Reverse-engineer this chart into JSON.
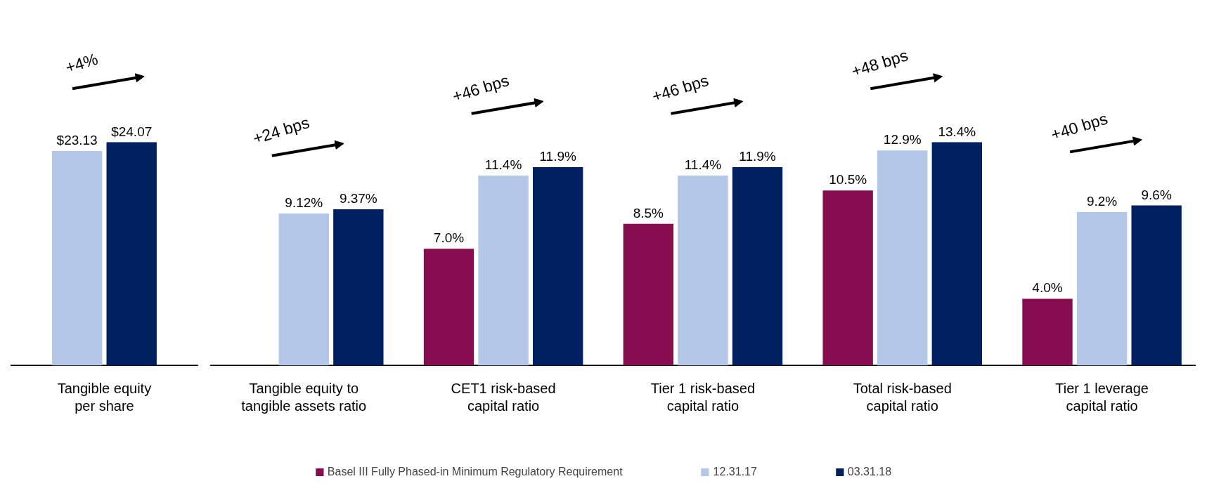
{
  "chart_data": [
    {
      "type": "bar",
      "categories": [
        "Tangible equity per share"
      ],
      "data_labels": true,
      "tick_labels": "x",
      "legend": false,
      "series": [
        {
          "color": "#b4c7e7",
          "values": [
            23.13
          ],
          "value_labels": [
            "$23.13"
          ]
        },
        {
          "color": "#002060",
          "values": [
            24.07
          ],
          "value_labels": [
            "$24.07"
          ]
        }
      ],
      "annotations": [
        "+4%"
      ]
    },
    {
      "type": "bar",
      "categories": [
        "Tangible equity to tangible assets ratio",
        "CET1 risk-based capital ratio",
        "Tier 1 risk-based capital ratio",
        "Total risk-based capital ratio",
        "Tier 1 leverage capital ratio"
      ],
      "data_labels": true,
      "tick_labels": "x",
      "legend": "bottom",
      "series": [
        {
          "name": "Basel III Fully Phased-in Minimum Regulatory Requirement",
          "color": "#870c50",
          "values": [
            null,
            7.0,
            8.5,
            10.5,
            4.0
          ],
          "value_labels": [
            null,
            "7.0%",
            "8.5%",
            "10.5%",
            "4.0%"
          ]
        },
        {
          "name": "12.31.17",
          "color": "#b4c7e7",
          "values": [
            9.12,
            11.4,
            11.4,
            12.9,
            9.2
          ],
          "value_labels": [
            "9.12%",
            "11.4%",
            "11.4%",
            "12.9%",
            "9.2%"
          ]
        },
        {
          "name": "03.31.18",
          "color": "#002060",
          "values": [
            9.37,
            11.9,
            11.9,
            13.4,
            9.6
          ],
          "value_labels": [
            "9.37%",
            "11.9%",
            "11.9%",
            "13.4%",
            "9.6%"
          ]
        }
      ],
      "annotations": [
        "+24 bps",
        "+46 bps",
        "+46 bps",
        "+48 bps",
        "+40 bps"
      ]
    }
  ]
}
